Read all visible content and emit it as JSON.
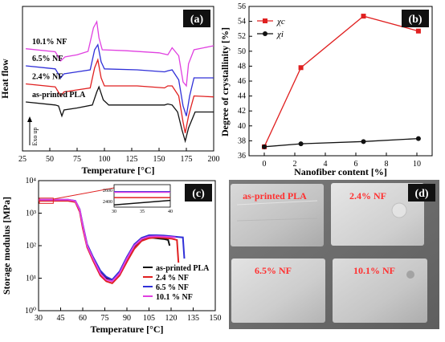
{
  "panels": {
    "a": "(a)",
    "b": "(b)",
    "c": "(c)",
    "d": "(d)"
  },
  "chart_data": [
    {
      "id": "a",
      "type": "line",
      "xlabel": "Temperature [°C]",
      "ylabel": "Heat flow",
      "yarrow_label": "Exo up",
      "xlim": [
        25,
        200
      ],
      "xticks": [
        25,
        50,
        75,
        100,
        125,
        150,
        175,
        200
      ],
      "series": [
        {
          "name": "10.1% NF",
          "color": "#e040e0",
          "points": [
            [
              28,
              0.15
            ],
            [
              55,
              0.3
            ],
            [
              60,
              0.75
            ],
            [
              64,
              0.55
            ],
            [
              75,
              0.45
            ],
            [
              85,
              0.28
            ],
            [
              90,
              -0.9
            ],
            [
              93,
              -1.2
            ],
            [
              95,
              -0.4
            ],
            [
              98,
              0.2
            ],
            [
              120,
              0.25
            ],
            [
              150,
              0.35
            ],
            [
              158,
              0.45
            ],
            [
              162,
              0.1
            ],
            [
              168,
              0.5
            ],
            [
              172,
              1.8
            ],
            [
              175,
              2.0
            ],
            [
              177,
              0.9
            ],
            [
              182,
              0.2
            ],
            [
              200,
              0.0
            ]
          ]
        },
        {
          "name": "6.5% NF",
          "color": "#3030d8",
          "points": [
            [
              28,
              1.0
            ],
            [
              55,
              1.15
            ],
            [
              60,
              1.6
            ],
            [
              63,
              1.4
            ],
            [
              75,
              1.3
            ],
            [
              87,
              1.2
            ],
            [
              91,
              0.2
            ],
            [
              94,
              -0.05
            ],
            [
              97,
              0.8
            ],
            [
              100,
              1.15
            ],
            [
              130,
              1.2
            ],
            [
              155,
              1.3
            ],
            [
              158,
              1.25
            ],
            [
              162,
              1.2
            ],
            [
              168,
              1.7
            ],
            [
              172,
              3.0
            ],
            [
              175,
              3.5
            ],
            [
              178,
              2.5
            ],
            [
              182,
              1.6
            ],
            [
              200,
              1.6
            ]
          ]
        },
        {
          "name": "2.4% NF",
          "color": "#e02020",
          "points": [
            [
              28,
              1.9
            ],
            [
              55,
              2.05
            ],
            [
              60,
              2.5
            ],
            [
              63,
              2.3
            ],
            [
              75,
              2.2
            ],
            [
              87,
              2.1
            ],
            [
              91,
              1.1
            ],
            [
              94,
              0.7
            ],
            [
              97,
              1.6
            ],
            [
              100,
              2.0
            ],
            [
              130,
              2.0
            ],
            [
              155,
              2.1
            ],
            [
              158,
              2.0
            ],
            [
              162,
              2.0
            ],
            [
              168,
              2.5
            ],
            [
              172,
              3.8
            ],
            [
              174,
              4.35
            ],
            [
              177,
              3.5
            ],
            [
              182,
              2.5
            ],
            [
              200,
              2.55
            ]
          ]
        },
        {
          "name": "as-printed PLA",
          "color": "#111111",
          "points": [
            [
              28,
              2.8
            ],
            [
              55,
              2.95
            ],
            [
              58,
              3.0
            ],
            [
              61,
              3.5
            ],
            [
              63,
              3.2
            ],
            [
              75,
              3.1
            ],
            [
              89,
              2.95
            ],
            [
              93,
              2.3
            ],
            [
              95,
              2.05
            ],
            [
              99,
              2.7
            ],
            [
              104,
              2.95
            ],
            [
              155,
              2.95
            ],
            [
              158,
              2.9
            ],
            [
              162,
              2.95
            ],
            [
              167,
              3.3
            ],
            [
              171,
              4.2
            ],
            [
              174,
              4.75
            ],
            [
              177,
              4.1
            ],
            [
              183,
              3.3
            ],
            [
              200,
              3.3
            ]
          ]
        }
      ]
    },
    {
      "id": "b",
      "type": "line",
      "xlabel": "Nanofiber content [%]",
      "ylabel": "Degree of crystallinity [%]",
      "xlim": [
        -1,
        11
      ],
      "ylim": [
        36,
        56
      ],
      "xticks": [
        0,
        2,
        4,
        6,
        8,
        10
      ],
      "yticks": [
        36,
        38,
        40,
        42,
        44,
        46,
        48,
        50,
        52,
        54,
        56
      ],
      "legend": "top-left",
      "series": [
        {
          "name": "χc",
          "sub": "c",
          "color": "#e02020",
          "marker": "square",
          "x": [
            0,
            2.4,
            6.5,
            10.1
          ],
          "values": [
            37.2,
            47.8,
            54.7,
            52.7
          ]
        },
        {
          "name": "χi",
          "sub": "i",
          "color": "#111111",
          "marker": "circle",
          "x": [
            0,
            2.4,
            6.5,
            10.1
          ],
          "values": [
            37.2,
            37.6,
            37.9,
            38.3
          ]
        }
      ]
    },
    {
      "id": "c",
      "type": "line",
      "xlabel": "Temperature [°C]",
      "ylabel": "Storage modulus [MPa]",
      "xlim": [
        30,
        150
      ],
      "ylim_log": [
        0,
        4
      ],
      "xticks": [
        30,
        45,
        60,
        75,
        90,
        105,
        120,
        135,
        150
      ],
      "ytick_labels": [
        "10⁰",
        "10¹",
        "10²",
        "10³",
        "10⁴"
      ],
      "legend": "lower-right",
      "series": [
        {
          "name": "as-printed PLA",
          "color": "#111111",
          "points": [
            [
              30,
              2500
            ],
            [
              50,
              2500
            ],
            [
              55,
              2300
            ],
            [
              58,
              1200
            ],
            [
              60,
              400
            ],
            [
              63,
              100
            ],
            [
              67,
              40
            ],
            [
              72,
              15
            ],
            [
              76,
              10
            ],
            [
              80,
              9
            ],
            [
              85,
              15
            ],
            [
              90,
              40
            ],
            [
              95,
              95
            ],
            [
              100,
              150
            ],
            [
              105,
              180
            ],
            [
              110,
              170
            ],
            [
              115,
              160
            ],
            [
              118,
              150
            ],
            [
              119,
              100
            ]
          ]
        },
        {
          "name": "2.4 % NF",
          "color": "#e02020",
          "points": [
            [
              30,
              2400
            ],
            [
              50,
              2400
            ],
            [
              55,
              2200
            ],
            [
              58,
              1100
            ],
            [
              60,
              350
            ],
            [
              63,
              90
            ],
            [
              67,
              35
            ],
            [
              72,
              12
            ],
            [
              76,
              8
            ],
            [
              80,
              7
            ],
            [
              85,
              12
            ],
            [
              90,
              32
            ],
            [
              95,
              80
            ],
            [
              100,
              140
            ],
            [
              105,
              170
            ],
            [
              110,
              180
            ],
            [
              115,
              175
            ],
            [
              120,
              165
            ],
            [
              124,
              150
            ],
            [
              125,
              30
            ]
          ]
        },
        {
          "name": "6.5 % NF",
          "color": "#3030d8",
          "points": [
            [
              30,
              2600
            ],
            [
              50,
              2600
            ],
            [
              55,
              2400
            ],
            [
              58,
              1300
            ],
            [
              60,
              450
            ],
            [
              63,
              110
            ],
            [
              67,
              45
            ],
            [
              72,
              17
            ],
            [
              76,
              11
            ],
            [
              80,
              9
            ],
            [
              85,
              16
            ],
            [
              90,
              45
            ],
            [
              95,
              110
            ],
            [
              100,
              175
            ],
            [
              105,
              210
            ],
            [
              110,
              210
            ],
            [
              115,
              205
            ],
            [
              120,
              195
            ],
            [
              125,
              185
            ],
            [
              128,
              180
            ],
            [
              129,
              40
            ]
          ]
        },
        {
          "name": "10.1 % NF",
          "color": "#e040e0",
          "points": [
            [
              30,
              2580
            ],
            [
              50,
              2580
            ],
            [
              55,
              2350
            ],
            [
              58,
              1250
            ],
            [
              60,
              420
            ],
            [
              63,
              100
            ],
            [
              67,
              40
            ],
            [
              72,
              14
            ],
            [
              76,
              9
            ],
            [
              80,
              8
            ],
            [
              85,
              14
            ],
            [
              90,
              40
            ],
            [
              95,
              100
            ],
            [
              100,
              160
            ],
            [
              105,
              190
            ],
            [
              110,
              195
            ],
            [
              115,
              190
            ],
            [
              120,
              185
            ],
            [
              123,
              180
            ]
          ]
        }
      ],
      "inset": {
        "xlim": [
          30,
          40
        ],
        "ylim": [
          2300,
          2700
        ],
        "xticks": [
          30,
          35,
          40
        ],
        "yticks": [
          2400,
          2600
        ],
        "series_levels": [
          {
            "color": "#111111",
            "y1": 2340,
            "y2": 2420
          },
          {
            "color": "#e02020",
            "y1": 2470,
            "y2": 2470
          },
          {
            "color": "#3030d8",
            "y1": 2575,
            "y2": 2575
          },
          {
            "color": "#e040e0",
            "y1": 2565,
            "y2": 2565
          }
        ]
      }
    }
  ],
  "photo_labels": [
    "as-printed PLA",
    "2.4% NF",
    "6.5% NF",
    "10.1% NF"
  ]
}
